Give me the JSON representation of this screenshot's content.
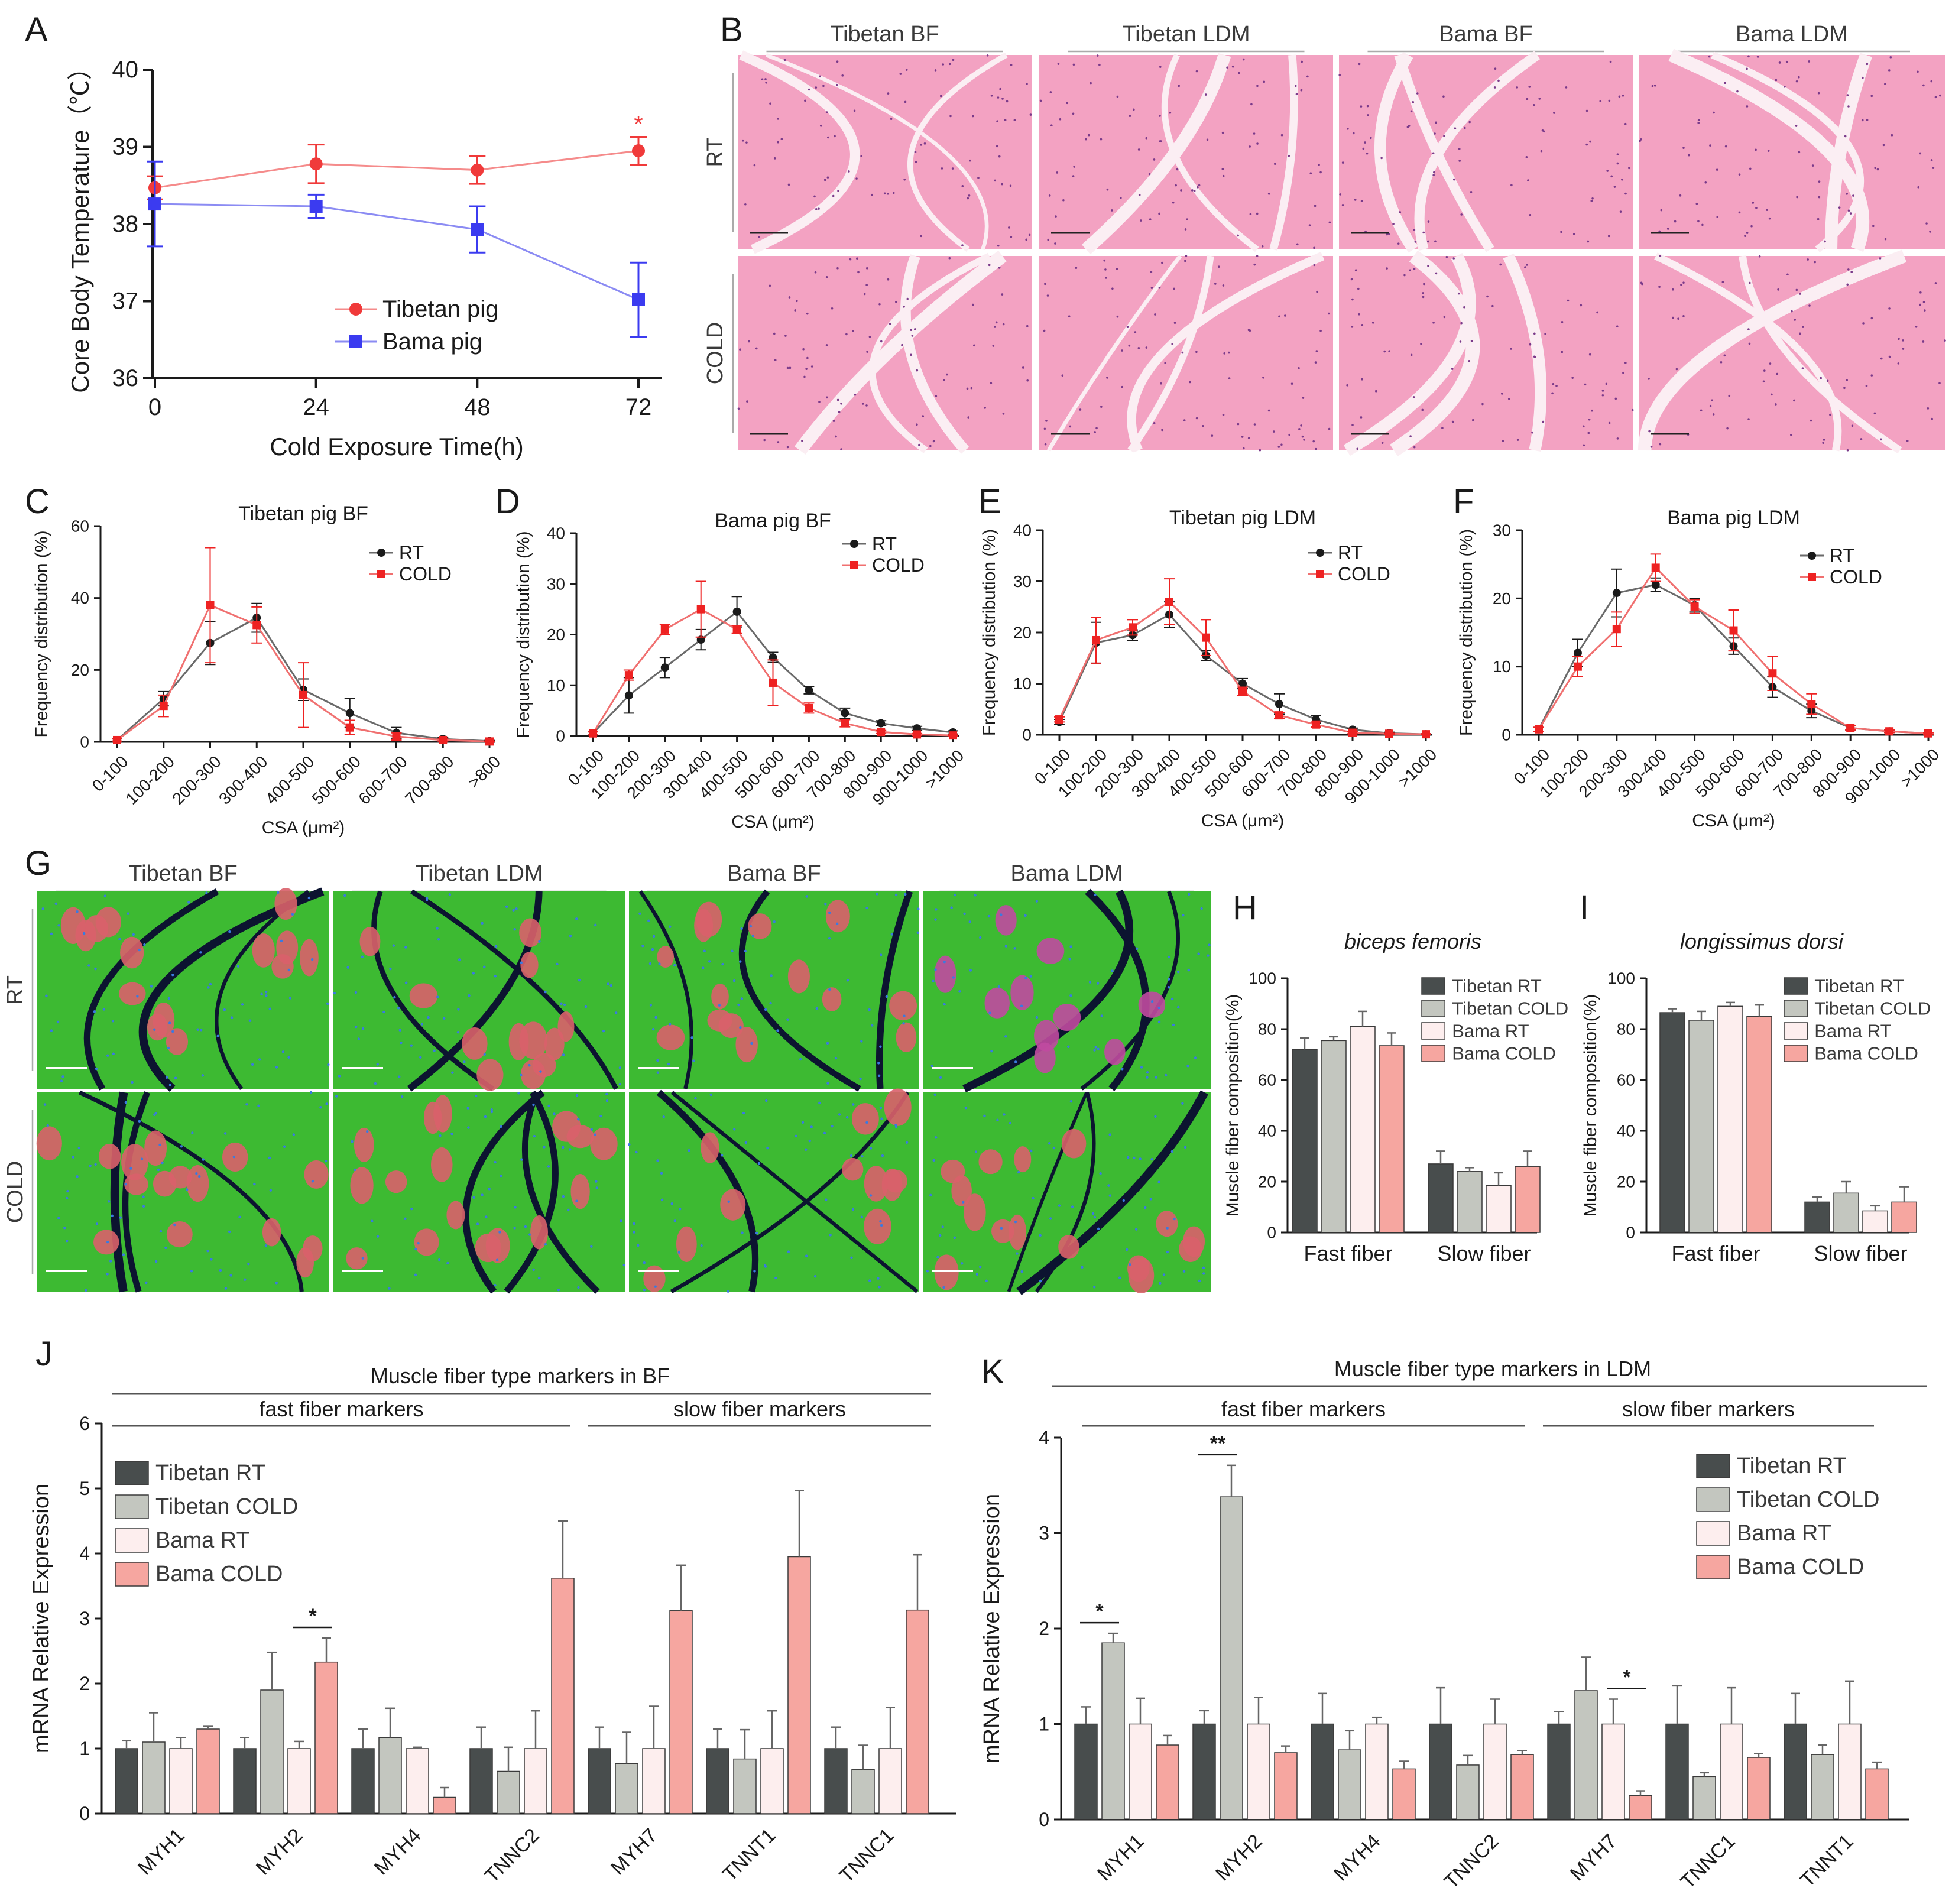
{
  "panel_letters": [
    "A",
    "B",
    "C",
    "D",
    "E",
    "F",
    "G",
    "H",
    "I",
    "J",
    "K"
  ],
  "histology": {
    "columns": [
      "Tibetan BF",
      "Tibetan LDM",
      "Bama BF",
      "Bama LDM"
    ],
    "rows": [
      "RT",
      "COLD"
    ]
  },
  "fiber_staining": {
    "columns": [
      "Tibetan BF",
      "Tibetan LDM",
      "Bama BF",
      "Bama LDM"
    ],
    "rows": [
      "RT",
      "COLD"
    ]
  },
  "colors": {
    "tibetan": "#f03a3a",
    "bama": "#3b3bf0",
    "rt": "#1a1a1a",
    "cold": "#ee2222",
    "tib_rt": "#484d4d",
    "tib_cold": "#c3c6bf",
    "bama_rt": "#fdeeee",
    "bama_cold": "#f6a6a0",
    "he_bg": "#f3a2c2",
    "if_green": "#3dba32"
  },
  "chart_data": [
    {
      "id": "A",
      "type": "line",
      "x": [
        0,
        24,
        48,
        72
      ],
      "xticks": [
        "0",
        "24",
        "48",
        "72"
      ],
      "xlabel": "Cold Exposure Time(h)",
      "ylabel": "Core Body Temperature（℃）",
      "ylim": [
        36,
        40
      ],
      "yticks": [
        "36",
        "37",
        "38",
        "39",
        "40"
      ],
      "legend": [
        "Tibetan pig",
        "Bama pig"
      ],
      "series": [
        {
          "name": "Tibetan pig",
          "values": [
            38.47,
            38.78,
            38.7,
            38.95
          ],
          "err": [
            0.15,
            0.25,
            0.18,
            0.18
          ]
        },
        {
          "name": "Bama pig",
          "values": [
            38.26,
            38.23,
            37.93,
            37.02
          ],
          "err": [
            0.55,
            0.15,
            0.3,
            0.48
          ]
        }
      ],
      "annotations": [
        {
          "x": 72,
          "text": "*"
        }
      ]
    },
    {
      "id": "C",
      "type": "line",
      "title": "Tibetan pig BF",
      "categories": [
        "0-100",
        "100-200",
        "200-300",
        "300-400",
        "400-500",
        "500-600",
        "600-700",
        "700-800",
        ">800"
      ],
      "xlabel": "CSA (μm²)",
      "ylabel": "Frequency distribution (%)",
      "ylim": [
        0,
        60
      ],
      "yticks": [
        "0",
        "20",
        "40",
        "60"
      ],
      "legend": [
        "RT",
        "COLD"
      ],
      "series": [
        {
          "name": "RT",
          "values": [
            0.5,
            12,
            27.5,
            34.5,
            14.5,
            8,
            2.5,
            0.8,
            0.2
          ],
          "err": [
            0.3,
            2,
            6,
            4,
            3,
            4,
            1.5,
            0.4,
            0.2
          ]
        },
        {
          "name": "COLD",
          "values": [
            0.5,
            10,
            38,
            32.5,
            13,
            4,
            1.5,
            0.5,
            0.1
          ],
          "err": [
            0.3,
            3,
            16,
            5,
            9,
            2,
            1,
            0.3,
            0.1
          ]
        }
      ]
    },
    {
      "id": "D",
      "type": "line",
      "title": "Bama pig BF",
      "categories": [
        "0-100",
        "100-200",
        "200-300",
        "300-400",
        "400-500",
        "500-600",
        "600-700",
        "700-800",
        "800-900",
        "900-1000",
        ">1000"
      ],
      "xlabel": "CSA (μm²)",
      "ylabel": "Frequency distribution (%)",
      "ylim": [
        0,
        40
      ],
      "yticks": [
        "0",
        "10",
        "20",
        "30",
        "40"
      ],
      "legend": [
        "RT",
        "COLD"
      ],
      "series": [
        {
          "name": "RT",
          "values": [
            0.5,
            8,
            13.5,
            19,
            24.5,
            15.5,
            9,
            4.5,
            2.5,
            1.5,
            0.7
          ],
          "err": [
            0.3,
            3.5,
            2,
            2,
            3,
            1,
            0.7,
            1,
            0.5,
            0.4,
            0.3
          ]
        },
        {
          "name": "COLD",
          "values": [
            0.5,
            12,
            21,
            25,
            21,
            10.5,
            5.5,
            2.5,
            0.8,
            0.3,
            0.1
          ],
          "err": [
            0.3,
            1,
            1,
            5.5,
            0.8,
            4.5,
            1,
            0.7,
            0.3,
            0.2,
            0.1
          ]
        }
      ]
    },
    {
      "id": "E",
      "type": "line",
      "title": "Tibetan pig LDM",
      "categories": [
        "0-100",
        "100-200",
        "200-300",
        "300-400",
        "400-500",
        "500-600",
        "600-700",
        "700-800",
        "800-900",
        "900-1000",
        ">1000"
      ],
      "xlabel": "CSA (μm²)",
      "ylabel": "Frequency distribution (%)",
      "ylim": [
        0,
        40
      ],
      "yticks": [
        "0",
        "10",
        "20",
        "30",
        "40"
      ],
      "legend": [
        "RT",
        "COLD"
      ],
      "series": [
        {
          "name": "RT",
          "values": [
            2.5,
            18,
            19.5,
            23.5,
            15.5,
            10,
            6,
            3,
            1,
            0.3,
            0.1
          ],
          "err": [
            0.5,
            4,
            1,
            2.5,
            1,
            1,
            2,
            0.7,
            0.3,
            0.2,
            0.1
          ]
        },
        {
          "name": "COLD",
          "values": [
            3,
            18.5,
            21,
            26,
            19,
            8.5,
            3.8,
            2,
            0.4,
            0.2,
            0.1
          ],
          "err": [
            0.5,
            4.5,
            1.5,
            4.5,
            3.5,
            0.8,
            0.6,
            0.5,
            0.2,
            0.1,
            0.1
          ]
        }
      ]
    },
    {
      "id": "F",
      "type": "line",
      "title": "Bama pig LDM",
      "categories": [
        "0-100",
        "100-200",
        "200-300",
        "300-400",
        "400-500",
        "500-600",
        "600-700",
        "700-800",
        "800-900",
        "900-1000",
        ">1000"
      ],
      "xlabel": "CSA (μm²)",
      "ylabel": "Frequency distribution (%)",
      "ylim": [
        0,
        30
      ],
      "yticks": [
        "0",
        "10",
        "20",
        "30"
      ],
      "legend": [
        "RT",
        "COLD"
      ],
      "series": [
        {
          "name": "RT",
          "values": [
            0.8,
            12,
            20.8,
            22,
            19,
            13,
            7,
            3.5,
            1,
            0.5,
            0.2
          ],
          "err": [
            0.3,
            2,
            3.5,
            1,
            1,
            1.2,
            1.5,
            1,
            0.3,
            0.2,
            0.1
          ]
        },
        {
          "name": "COLD",
          "values": [
            0.8,
            10,
            15.5,
            24.5,
            18.8,
            15.3,
            9,
            4.5,
            1,
            0.5,
            0.2
          ],
          "err": [
            0.3,
            1.5,
            2.5,
            2,
            1,
            3,
            2.5,
            1.5,
            0.3,
            0.2,
            0.1
          ]
        }
      ]
    },
    {
      "id": "H",
      "type": "bar",
      "title": "biceps femoris",
      "categories": [
        "Fast fiber",
        "Slow fiber"
      ],
      "ylabel": "Muscle fiber composition(%)",
      "ylim": [
        0,
        100
      ],
      "yticks": [
        "0",
        "20",
        "40",
        "60",
        "80",
        "100"
      ],
      "legend": [
        "Tibetan RT",
        "Tibetan COLD",
        "Bama RT",
        "Bama COLD"
      ],
      "series": [
        {
          "name": "Tibetan RT",
          "values": [
            72,
            27
          ],
          "err": [
            4.5,
            5
          ]
        },
        {
          "name": "Tibetan COLD",
          "values": [
            75.5,
            24
          ],
          "err": [
            1.5,
            1.5
          ]
        },
        {
          "name": "Bama RT",
          "values": [
            81,
            18.5
          ],
          "err": [
            6,
            5
          ]
        },
        {
          "name": "Bama COLD",
          "values": [
            73.5,
            26
          ],
          "err": [
            5,
            6
          ]
        }
      ]
    },
    {
      "id": "I",
      "type": "bar",
      "title": "longissimus dorsi",
      "categories": [
        "Fast fiber",
        "Slow fiber"
      ],
      "ylabel": "Muscle fiber composition(%)",
      "ylim": [
        0,
        100
      ],
      "yticks": [
        "0",
        "20",
        "40",
        "60",
        "80",
        "100"
      ],
      "legend": [
        "Tibetan RT",
        "Tibetan COLD",
        "Bama RT",
        "Bama COLD"
      ],
      "series": [
        {
          "name": "Tibetan RT",
          "values": [
            86.5,
            12
          ],
          "err": [
            1.5,
            2
          ]
        },
        {
          "name": "Tibetan COLD",
          "values": [
            83.5,
            15.5
          ],
          "err": [
            3.5,
            4.5
          ]
        },
        {
          "name": "Bama RT",
          "values": [
            89,
            8.5
          ],
          "err": [
            1.5,
            2
          ]
        },
        {
          "name": "Bama COLD",
          "values": [
            85,
            12
          ],
          "err": [
            4.5,
            6
          ]
        }
      ]
    },
    {
      "id": "J",
      "type": "bar",
      "title": "Muscle fiber type markers in  BF",
      "group_labels": [
        "fast fiber markers",
        "slow fiber markers"
      ],
      "categories": [
        "MYH1",
        "MYH2",
        "MYH4",
        "TNNC2",
        "MYH7",
        "TNNT1",
        "TNNC1"
      ],
      "ylabel": "mRNA Relative Expression",
      "ylim": [
        0,
        6
      ],
      "yticks": [
        "0",
        "1",
        "2",
        "3",
        "4",
        "5",
        "6"
      ],
      "legend": [
        "Tibetan RT",
        "Tibetan COLD",
        "Bama RT",
        "Bama COLD"
      ],
      "series": [
        {
          "name": "Tibetan RT",
          "values": [
            1,
            1,
            1,
            1,
            1,
            1,
            1
          ],
          "err": [
            0.12,
            0.17,
            0.3,
            0.33,
            0.33,
            0.3,
            0.33
          ]
        },
        {
          "name": "Tibetan COLD",
          "values": [
            1.1,
            1.9,
            1.17,
            0.65,
            0.77,
            0.84,
            0.68
          ],
          "err": [
            0.45,
            0.58,
            0.45,
            0.37,
            0.48,
            0.45,
            0.37
          ]
        },
        {
          "name": "Bama RT",
          "values": [
            1,
            1,
            1,
            1,
            1,
            1,
            1
          ],
          "err": [
            0.17,
            0.11,
            0.02,
            0.58,
            0.65,
            0.58,
            0.63
          ]
        },
        {
          "name": "Bama COLD",
          "values": [
            1.3,
            2.33,
            0.25,
            3.62,
            3.12,
            3.95,
            3.13
          ],
          "err": [
            0.04,
            0.37,
            0.15,
            0.88,
            0.7,
            1.02,
            0.85
          ]
        }
      ],
      "annotations": [
        {
          "category": "MYH2",
          "text": "*"
        }
      ]
    },
    {
      "id": "K",
      "type": "bar",
      "title": "Muscle fiber type markers in  LDM",
      "group_labels": [
        "fast fiber markers",
        "slow fiber markers"
      ],
      "categories": [
        "MYH1",
        "MYH2",
        "MYH4",
        "TNNC2",
        "MYH7",
        "TNNC1",
        "TNNT1"
      ],
      "ylabel": "mRNA Relative Expression",
      "ylim": [
        0,
        4
      ],
      "yticks": [
        "0",
        "1",
        "2",
        "3",
        "4"
      ],
      "legend": [
        "Tibetan RT",
        "Tibetan COLD",
        "Bama RT",
        "Bama COLD"
      ],
      "series": [
        {
          "name": "Tibetan RT",
          "values": [
            1,
            1,
            1,
            1,
            1,
            1,
            1
          ],
          "err": [
            0.18,
            0.14,
            0.32,
            0.38,
            0.13,
            0.4,
            0.32
          ]
        },
        {
          "name": "Tibetan COLD",
          "values": [
            1.85,
            3.38,
            0.73,
            0.57,
            1.35,
            0.45,
            0.68
          ],
          "err": [
            0.1,
            0.33,
            0.2,
            0.1,
            0.35,
            0.04,
            0.1
          ]
        },
        {
          "name": "Bama RT",
          "values": [
            1,
            1,
            1,
            1,
            1,
            1,
            1
          ],
          "err": [
            0.27,
            0.28,
            0.07,
            0.26,
            0.26,
            0.38,
            0.45
          ]
        },
        {
          "name": "Bama COLD",
          "values": [
            0.78,
            0.7,
            0.53,
            0.68,
            0.25,
            0.65,
            0.53
          ],
          "err": [
            0.1,
            0.07,
            0.08,
            0.04,
            0.05,
            0.04,
            0.07
          ]
        }
      ],
      "annotations": [
        {
          "category": "MYH1",
          "text": "*"
        },
        {
          "category": "MYH2",
          "text": "**"
        },
        {
          "category": "MYH7",
          "text": "*"
        }
      ]
    }
  ]
}
